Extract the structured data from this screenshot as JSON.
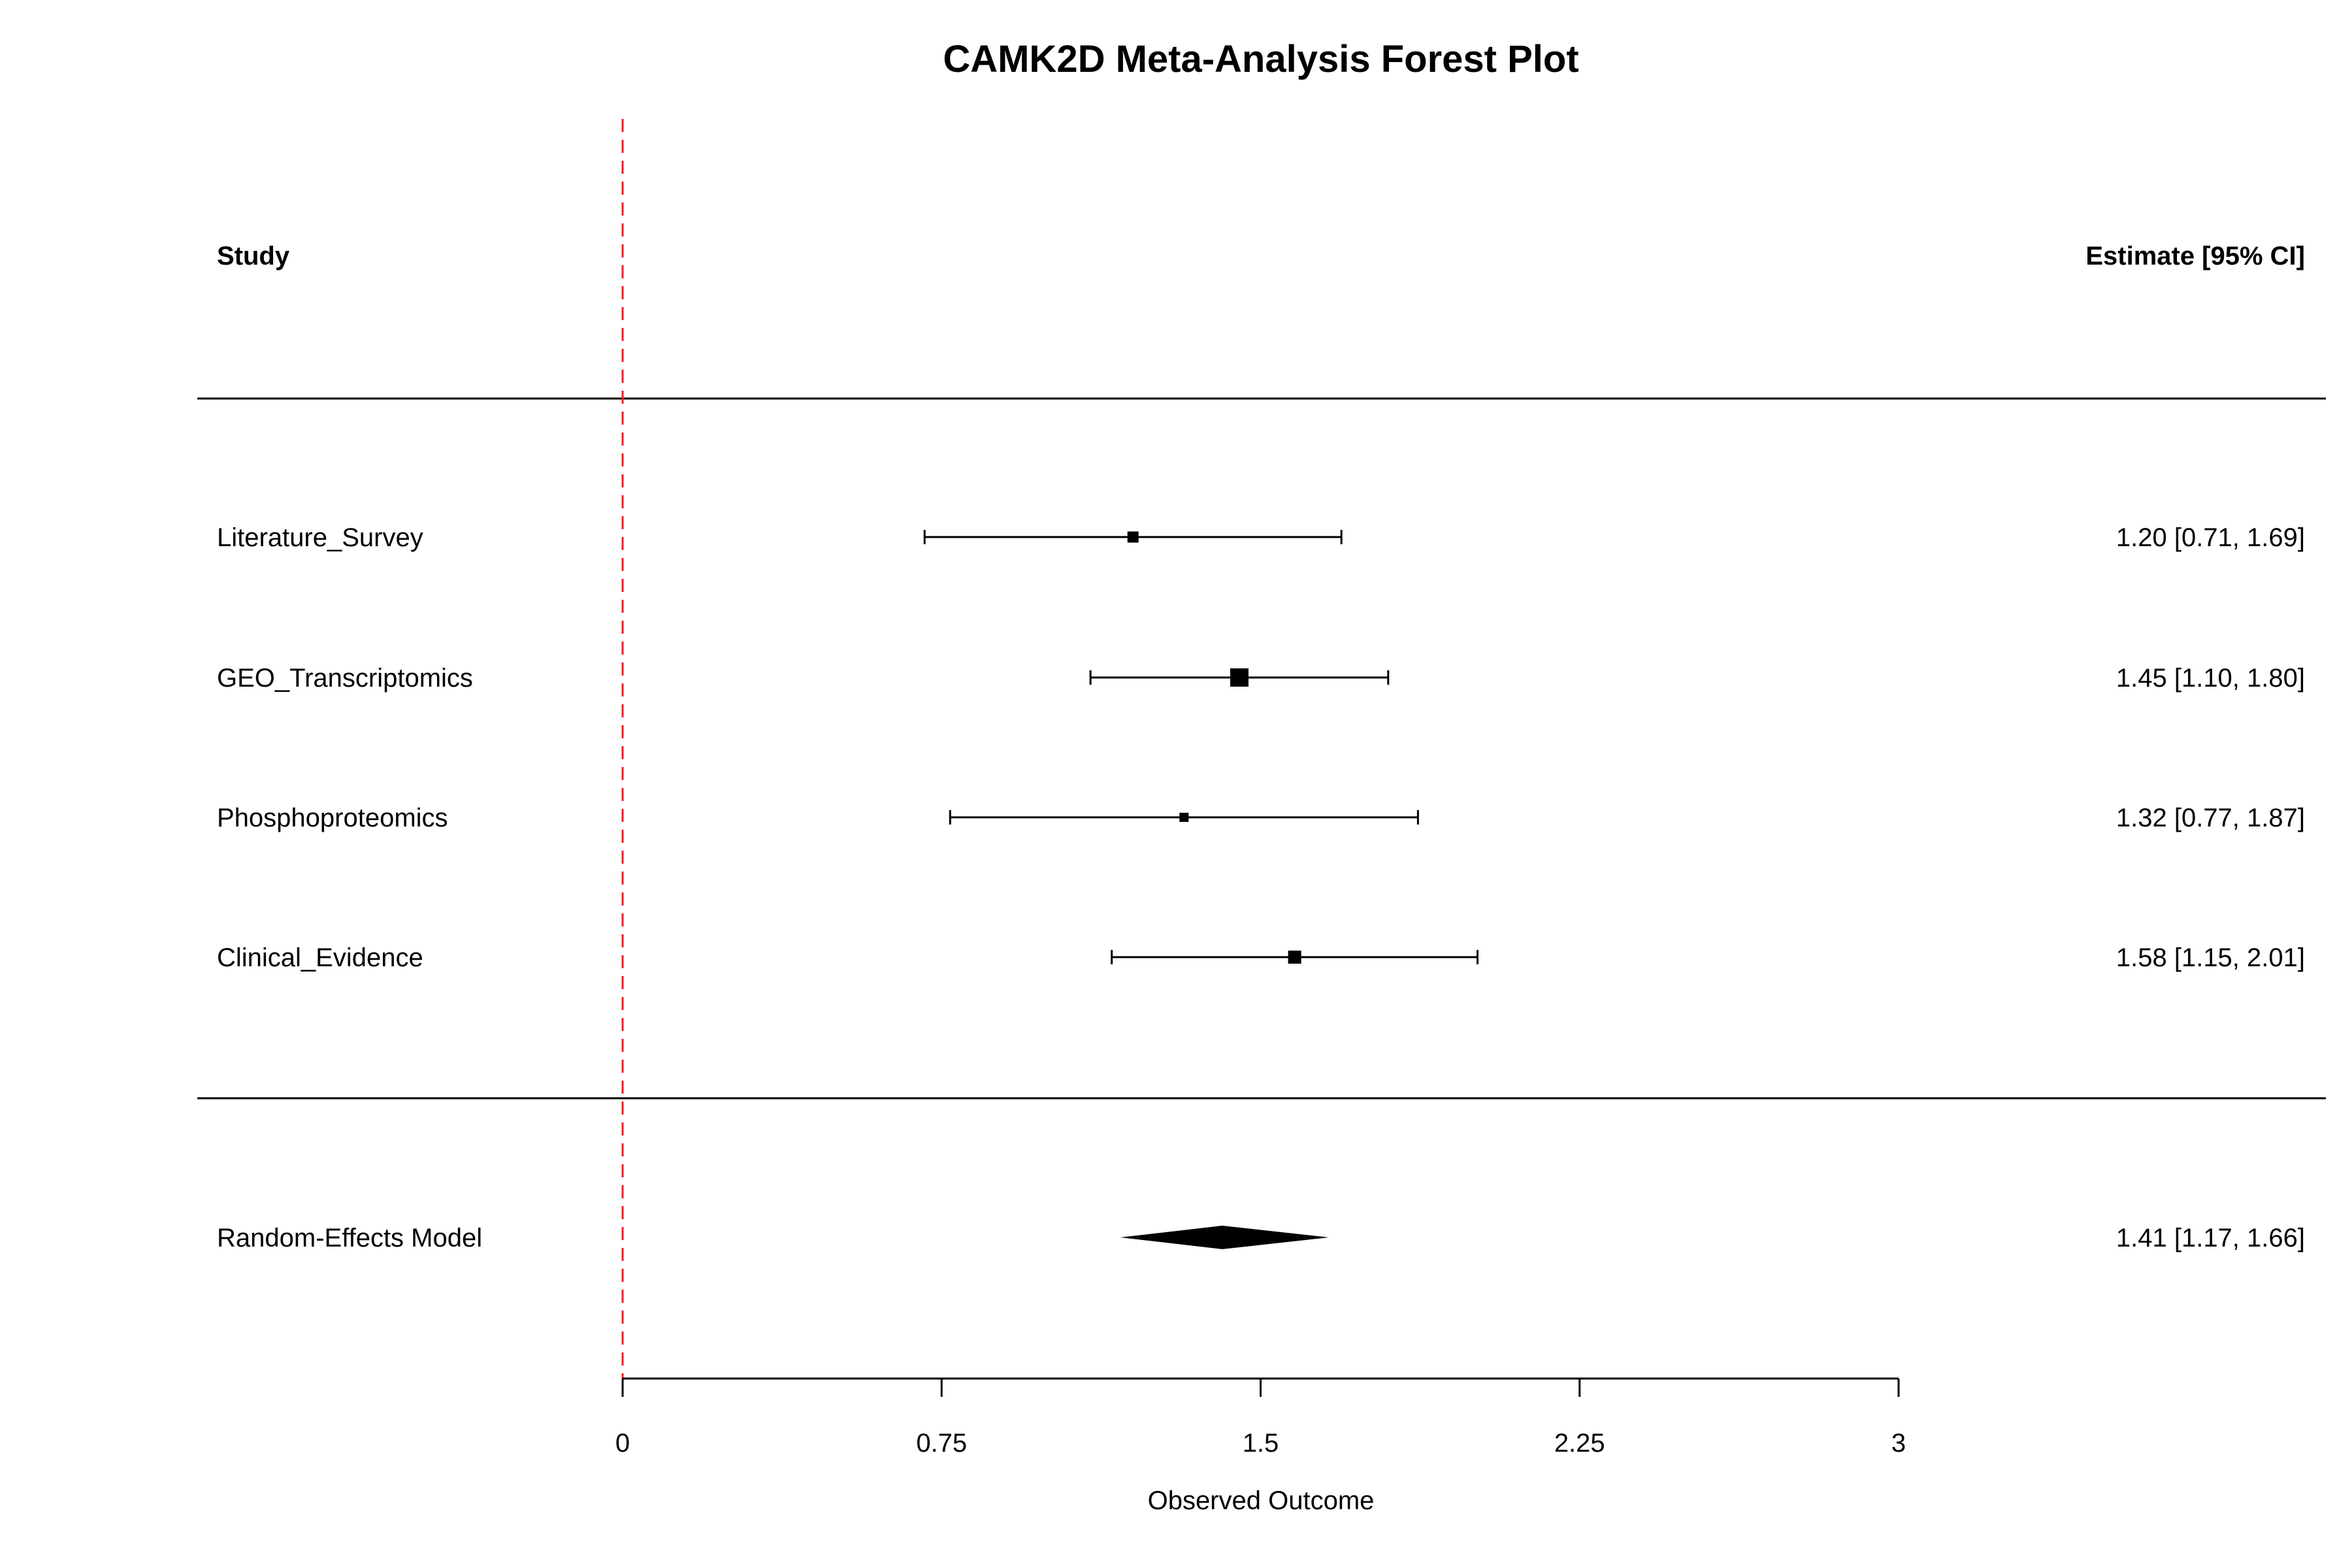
{
  "chart_data": {
    "type": "forest",
    "title": "CAMK2D Meta-Analysis Forest Plot",
    "xlabel": "Observed Outcome",
    "xlim": [
      0,
      3
    ],
    "x_ticks": [
      "0",
      "0.75",
      "1.5",
      "2.25",
      "3"
    ],
    "x_tick_values": [
      0,
      0.75,
      1.5,
      2.25,
      3
    ],
    "reference_line": {
      "x": 0,
      "style": "dashed",
      "color": "#e8202a"
    },
    "header": {
      "study": "Study",
      "estimate": "Estimate [95% CI]"
    },
    "studies": [
      {
        "name": "Literature_Survey",
        "estimate": 1.2,
        "ci_low": 0.71,
        "ci_high": 1.69,
        "label": "1.20 [0.71, 1.69]",
        "weight": 0.45
      },
      {
        "name": "GEO_Transcriptomics",
        "estimate": 1.45,
        "ci_low": 1.1,
        "ci_high": 1.8,
        "label": "1.45 [1.10, 1.80]",
        "weight": 1.0
      },
      {
        "name": "Phosphoproteomics",
        "estimate": 1.32,
        "ci_low": 0.77,
        "ci_high": 1.87,
        "label": "1.32 [0.77, 1.87]",
        "weight": 0.3
      },
      {
        "name": "Clinical_Evidence",
        "estimate": 1.58,
        "ci_low": 1.15,
        "ci_high": 2.01,
        "label": "1.58 [1.15, 2.01]",
        "weight": 0.6
      }
    ],
    "summary": {
      "name": "Random-Effects Model",
      "estimate": 1.41,
      "ci_low": 1.17,
      "ci_high": 1.66,
      "label": "1.41 [1.17, 1.66]"
    }
  }
}
